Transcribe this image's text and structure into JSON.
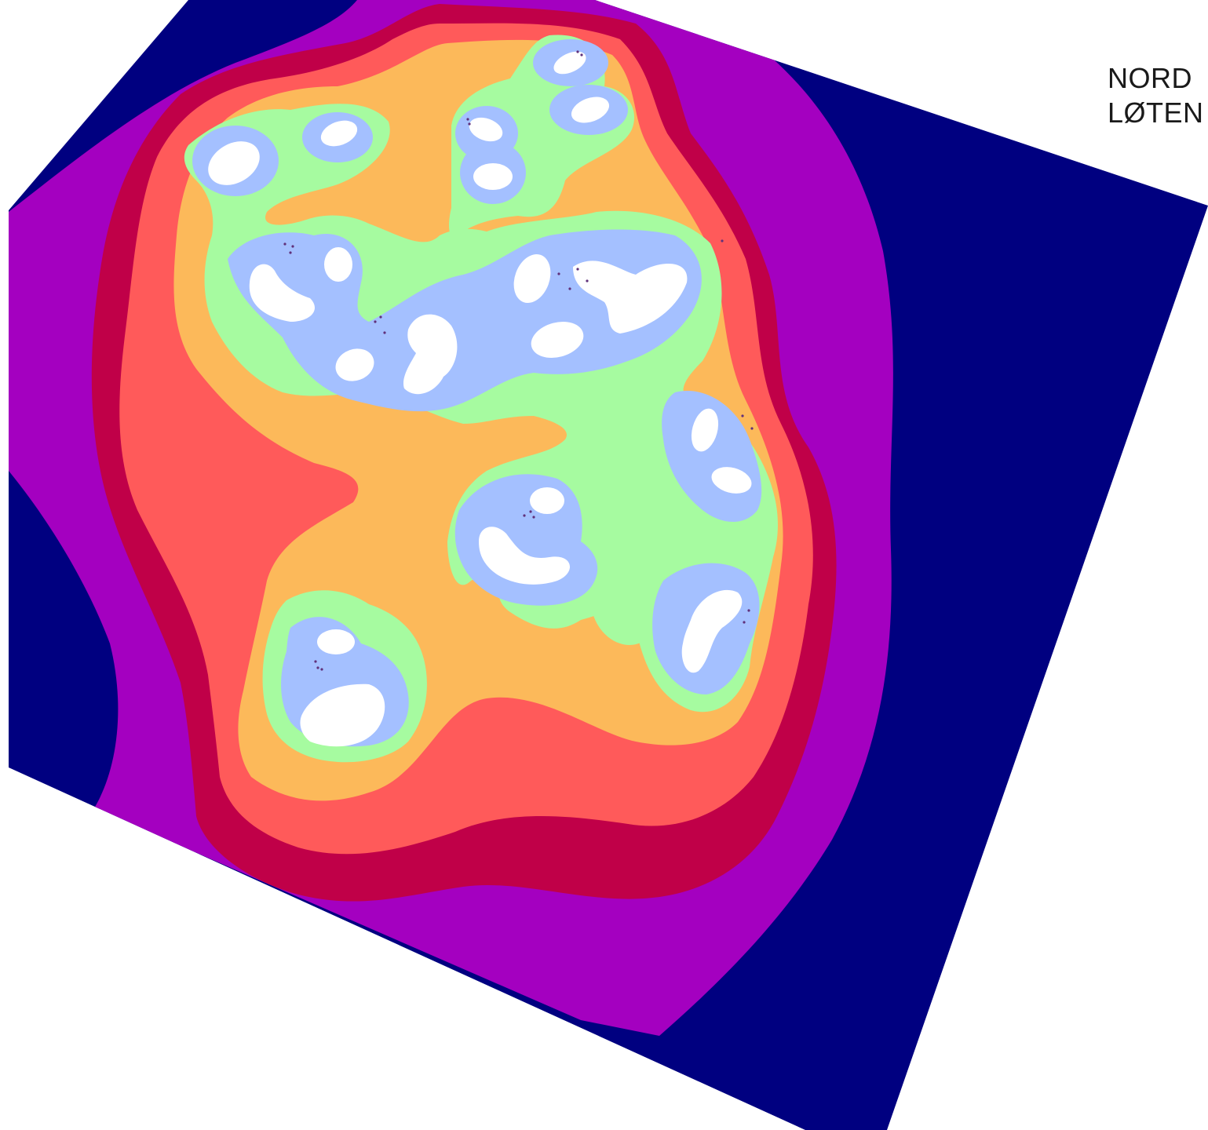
{
  "title": {
    "line1": "NORD",
    "line2": "LØTEN"
  },
  "legend_colors": {
    "outer": "#000080",
    "band1": "#a400c0",
    "band2": "#c00048",
    "band3": "#ff5a5a",
    "band4": "#fcb95a",
    "band5": "#a6fba0",
    "band6": "#a4c0ff",
    "peak": "#ffffff",
    "markers": "#60307a"
  }
}
